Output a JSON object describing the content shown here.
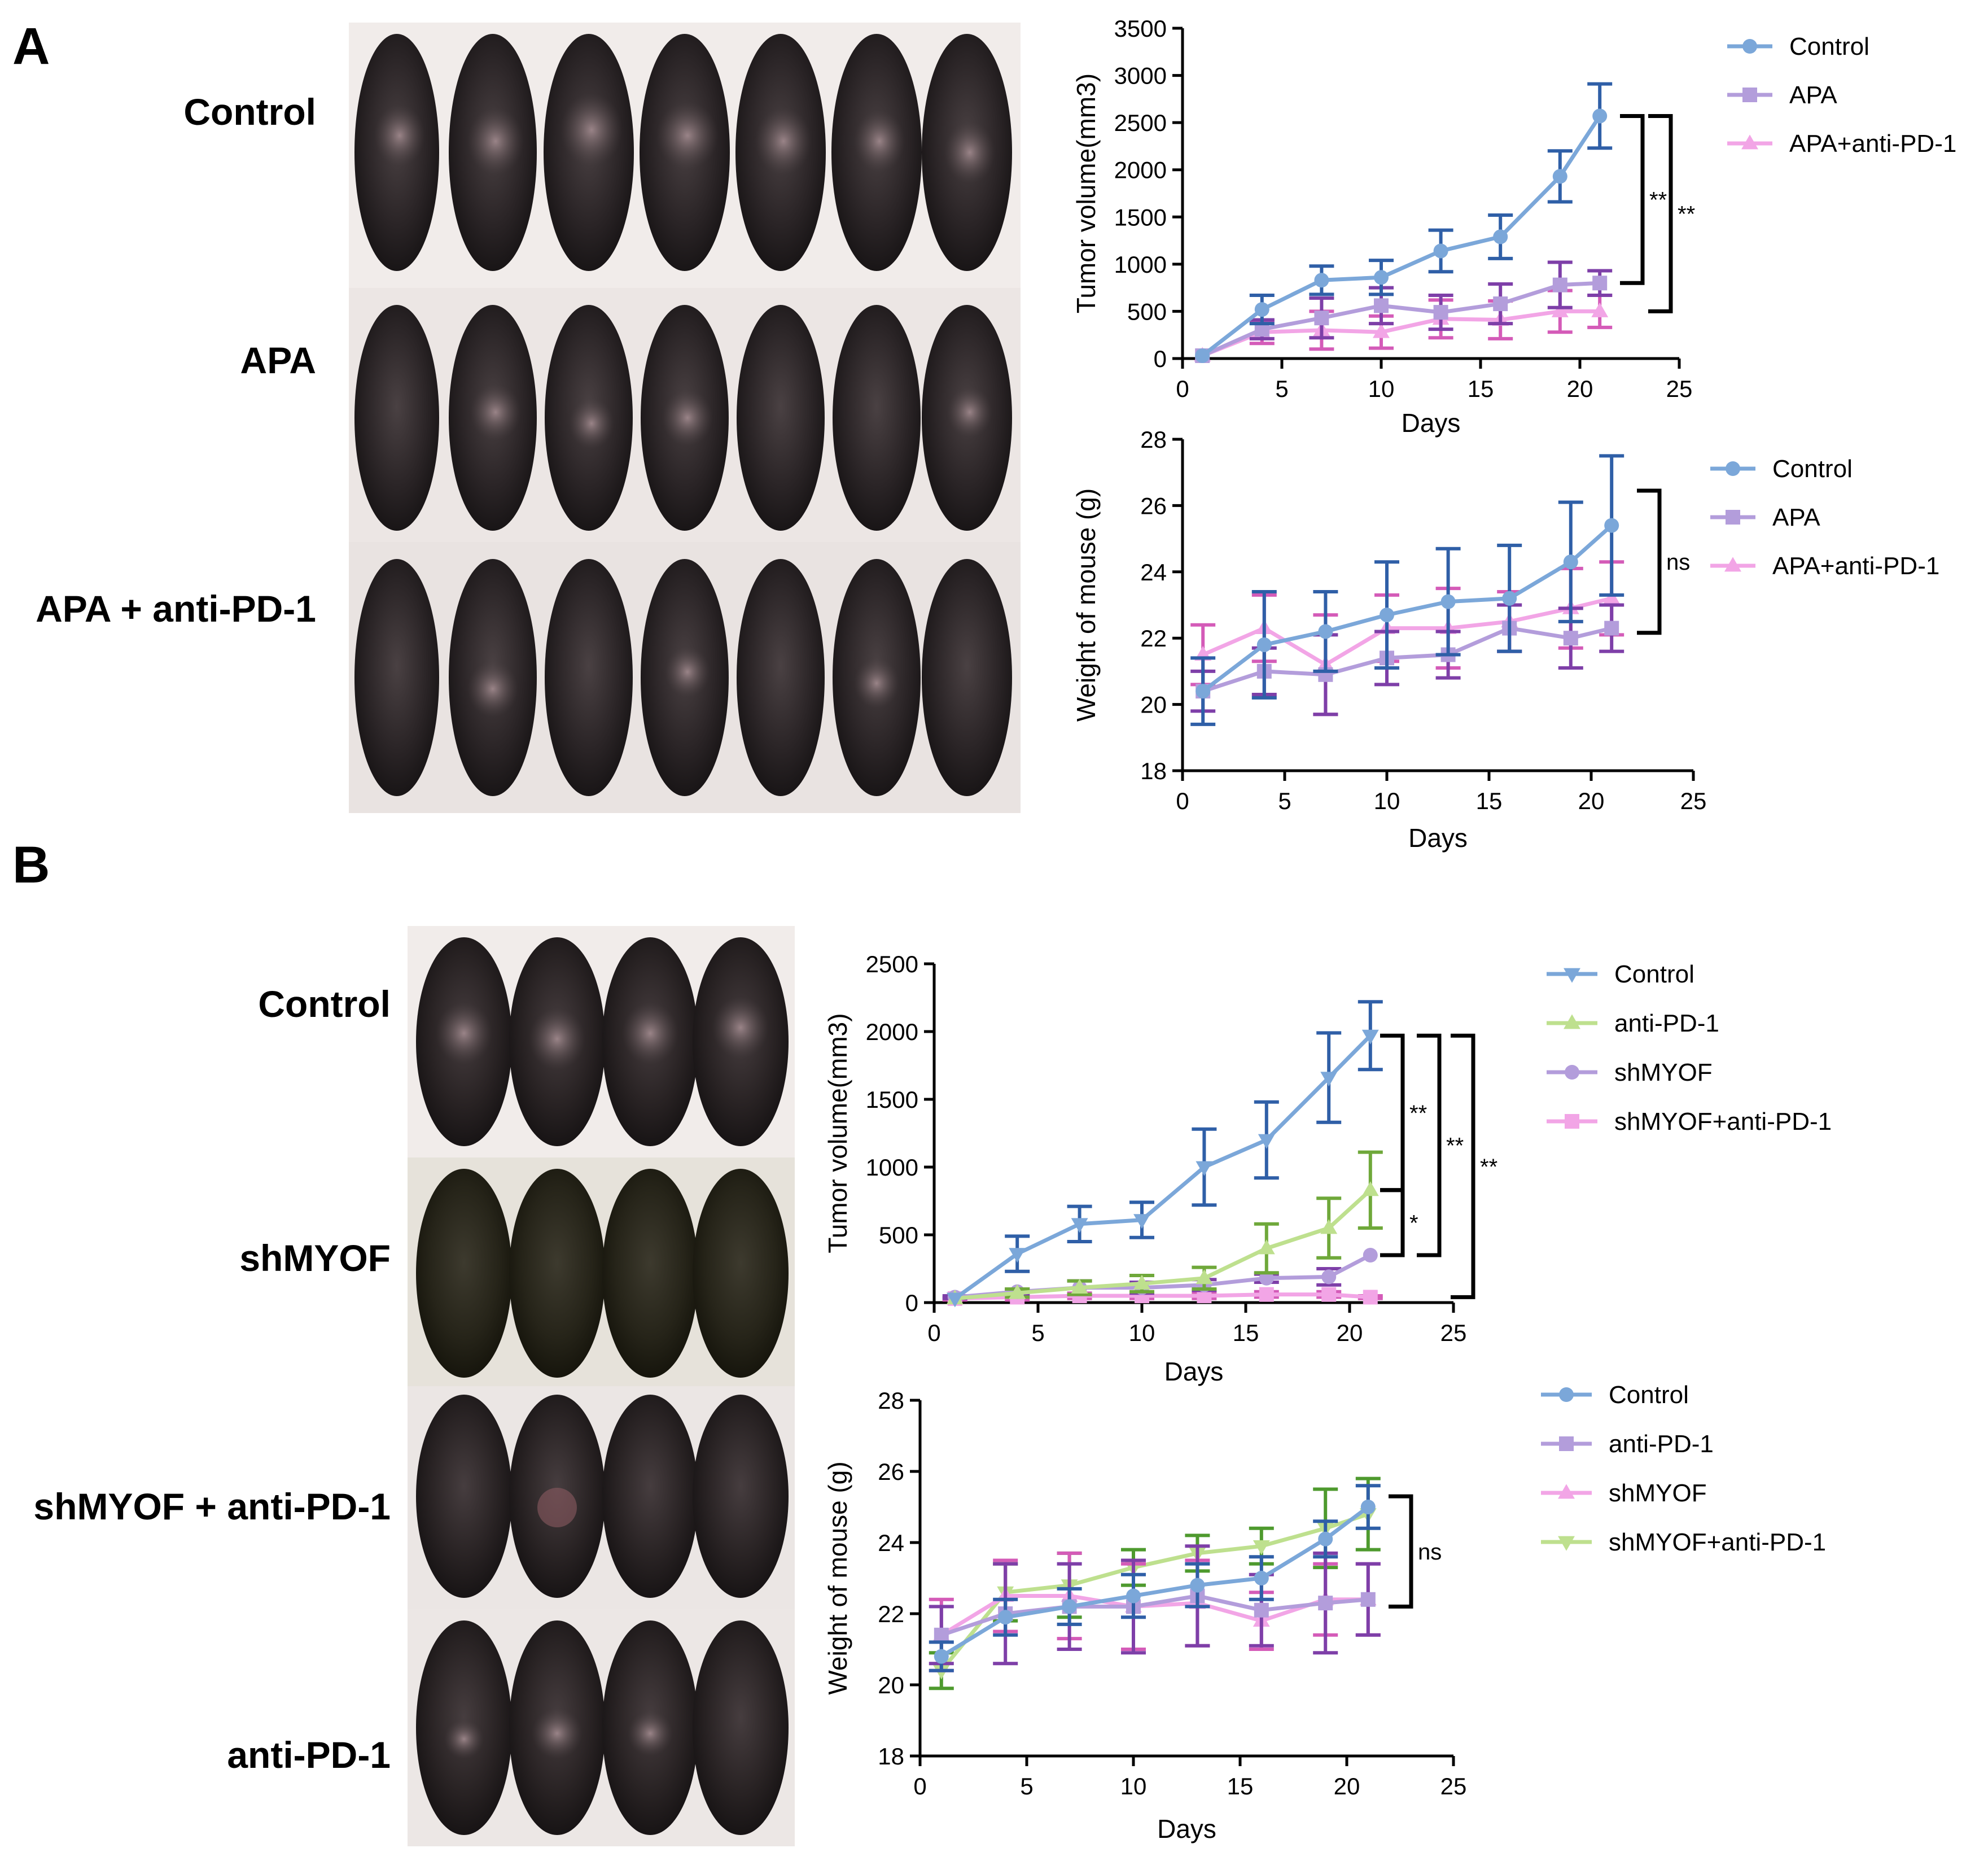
{
  "panels": {
    "A": {
      "letter": "A",
      "rows": [
        "Control",
        "APA",
        "APA + anti-PD-1"
      ]
    },
    "B": {
      "letter": "B",
      "rows": [
        "Control",
        "shMYOF",
        "shMYOF + anti-PD-1",
        "anti-PD-1"
      ]
    }
  },
  "colors": {
    "blue": "#7BA7D9",
    "blue_err": "#2F5FA7",
    "purple": "#B39DDB",
    "purple_err": "#7E3FA8",
    "pink": "#F2A5E6",
    "pink_err": "#D45BB8",
    "green": "#BEE08E",
    "green_err": "#6FA83A",
    "green_err2": "#4E9A2E"
  },
  "chart_data": [
    {
      "id": "A-tumor",
      "type": "line",
      "ylabel": "Tumor volume(mm3)",
      "xlabel": "Days",
      "xlim": [
        0,
        25
      ],
      "ylim": [
        0,
        3500
      ],
      "xticks": [
        "0",
        "5",
        "10",
        "15",
        "20",
        "25"
      ],
      "yticks": [
        "0",
        "500",
        "1000",
        "1500",
        "2000",
        "2500",
        "3000",
        "3500"
      ],
      "series": [
        {
          "name": "Control",
          "marker": "circle",
          "color": "#7BA7D9",
          "err_color": "#2F5FA7",
          "x": [
            1,
            4,
            7,
            10,
            13,
            16,
            19,
            21
          ],
          "y": [
            30,
            520,
            830,
            860,
            1140,
            1290,
            1930,
            2570
          ],
          "err": [
            0,
            150,
            150,
            180,
            220,
            230,
            270,
            340
          ]
        },
        {
          "name": "APA",
          "marker": "square",
          "color": "#B39DDB",
          "err_color": "#7E3FA8",
          "x": [
            1,
            4,
            7,
            10,
            13,
            16,
            19,
            21
          ],
          "y": [
            30,
            310,
            430,
            560,
            490,
            580,
            780,
            800
          ],
          "err": [
            0,
            100,
            210,
            190,
            180,
            210,
            240,
            130
          ]
        },
        {
          "name": "APA+anti-PD-1",
          "marker": "triangle",
          "color": "#F2A5E6",
          "err_color": "#D45BB8",
          "x": [
            1,
            4,
            7,
            10,
            13,
            16,
            19,
            21
          ],
          "y": [
            30,
            280,
            300,
            280,
            420,
            410,
            500,
            500
          ],
          "err": [
            0,
            120,
            200,
            170,
            200,
            200,
            220,
            170
          ]
        }
      ],
      "significance": [
        "**",
        "**"
      ]
    },
    {
      "id": "A-weight",
      "type": "line",
      "ylabel": "Weight of mouse (g)",
      "xlabel": "Days",
      "xlim": [
        0,
        25
      ],
      "ylim": [
        18,
        28
      ],
      "xticks": [
        "0",
        "5",
        "10",
        "15",
        "20",
        "25"
      ],
      "yticks": [
        "18",
        "20",
        "22",
        "24",
        "26",
        "28"
      ],
      "series": [
        {
          "name": "Control",
          "marker": "circle",
          "color": "#7BA7D9",
          "err_color": "#2F5FA7",
          "x": [
            1,
            4,
            7,
            10,
            13,
            16,
            19,
            21
          ],
          "y": [
            20.4,
            21.8,
            22.2,
            22.7,
            23.1,
            23.2,
            24.3,
            25.4
          ],
          "err": [
            1.0,
            1.6,
            1.2,
            1.6,
            1.6,
            1.6,
            1.8,
            2.1
          ]
        },
        {
          "name": "APA",
          "marker": "square",
          "color": "#B39DDB",
          "err_color": "#7E3FA8",
          "x": [
            1,
            4,
            7,
            10,
            13,
            16,
            19,
            21
          ],
          "y": [
            20.4,
            21.0,
            20.9,
            21.4,
            21.5,
            22.3,
            22.0,
            22.3
          ],
          "err": [
            0.6,
            0.7,
            1.2,
            0.8,
            0.7,
            0.7,
            0.9,
            0.7
          ]
        },
        {
          "name": "APA+anti-PD-1",
          "marker": "triangle",
          "color": "#F2A5E6",
          "err_color": "#D45BB8",
          "x": [
            1,
            4,
            7,
            10,
            13,
            16,
            19,
            21
          ],
          "y": [
            21.5,
            22.3,
            21.2,
            22.3,
            22.3,
            22.5,
            22.9,
            23.2
          ],
          "err": [
            0.9,
            1.0,
            1.5,
            1.0,
            1.2,
            0.9,
            1.2,
            1.1
          ]
        }
      ],
      "significance": [
        "ns"
      ]
    },
    {
      "id": "B-tumor",
      "type": "line",
      "ylabel": "Tumor volume(mm3)",
      "xlabel": "Days",
      "xlim": [
        0,
        25
      ],
      "ylim": [
        0,
        2500
      ],
      "xticks": [
        "0",
        "5",
        "10",
        "15",
        "20",
        "25"
      ],
      "yticks": [
        "0",
        "500",
        "1000",
        "1500",
        "2000",
        "2500"
      ],
      "series": [
        {
          "name": "Control",
          "marker": "triangle-down",
          "color": "#7BA7D9",
          "err_color": "#2F5FA7",
          "x": [
            1,
            4,
            7,
            10,
            13,
            16,
            19,
            21
          ],
          "y": [
            30,
            360,
            580,
            610,
            1000,
            1200,
            1660,
            1970
          ],
          "err": [
            0,
            130,
            130,
            130,
            280,
            280,
            330,
            250
          ]
        },
        {
          "name": "anti-PD-1",
          "marker": "triangle",
          "color": "#BEE08E",
          "err_color": "#6FA83A",
          "x": [
            1,
            4,
            7,
            10,
            13,
            16,
            19,
            21
          ],
          "y": [
            30,
            70,
            110,
            140,
            180,
            400,
            550,
            830
          ],
          "err": [
            0,
            30,
            50,
            60,
            80,
            180,
            220,
            280
          ]
        },
        {
          "name": "shMYOF",
          "marker": "circle",
          "color": "#B39DDB",
          "err_color": "#7E3FA8",
          "x": [
            1,
            4,
            7,
            10,
            13,
            16,
            19,
            21
          ],
          "y": [
            40,
            80,
            110,
            110,
            130,
            180,
            190,
            350
          ],
          "err": [
            10,
            20,
            50,
            40,
            40,
            30,
            60,
            0
          ]
        },
        {
          "name": "shMYOF+anti-PD-1",
          "marker": "square",
          "color": "#F2A5E6",
          "err_color": "#D45BB8",
          "x": [
            1,
            4,
            7,
            10,
            13,
            16,
            19,
            21
          ],
          "y": [
            30,
            40,
            50,
            50,
            50,
            60,
            60,
            40
          ],
          "err": [
            10,
            20,
            20,
            20,
            20,
            20,
            20,
            10
          ]
        }
      ],
      "significance": [
        "**",
        "*",
        "**",
        "**"
      ]
    },
    {
      "id": "B-weight",
      "type": "line",
      "ylabel": "Weight of mouse (g)",
      "xlabel": "Days",
      "xlim": [
        0,
        25
      ],
      "ylim": [
        18,
        28
      ],
      "xticks": [
        "0",
        "5",
        "10",
        "15",
        "20",
        "25"
      ],
      "yticks": [
        "18",
        "20",
        "22",
        "24",
        "26",
        "28"
      ],
      "series": [
        {
          "name": "Control",
          "marker": "circle",
          "color": "#7BA7D9",
          "err_color": "#2F5FA7",
          "x": [
            1,
            4,
            7,
            10,
            13,
            16,
            19,
            21
          ],
          "y": [
            20.8,
            21.9,
            22.2,
            22.5,
            22.8,
            23.0,
            24.1,
            25.0
          ],
          "err": [
            0.4,
            0.5,
            0.5,
            0.6,
            0.6,
            0.6,
            0.5,
            0.6
          ]
        },
        {
          "name": "anti-PD-1",
          "marker": "square",
          "color": "#B39DDB",
          "err_color": "#7E3FA8",
          "x": [
            1,
            4,
            7,
            10,
            13,
            16,
            19,
            21
          ],
          "y": [
            21.4,
            22.0,
            22.2,
            22.2,
            22.5,
            22.1,
            22.3,
            22.4
          ],
          "err": [
            0.8,
            1.4,
            1.2,
            1.3,
            1.4,
            1.0,
            1.4,
            1.0
          ]
        },
        {
          "name": "shMYOF",
          "marker": "triangle",
          "color": "#F2A5E6",
          "err_color": "#D45BB8",
          "x": [
            1,
            4,
            7,
            10,
            13,
            16,
            19,
            21
          ],
          "y": [
            21.4,
            22.5,
            22.5,
            22.2,
            22.3,
            21.8,
            22.4,
            22.4
          ],
          "err": [
            1.0,
            1.0,
            1.2,
            1.2,
            1.2,
            0.8,
            1.0,
            1.0
          ]
        },
        {
          "name": "shMYOF+anti-PD-1",
          "marker": "triangle-down",
          "color": "#BEE08E",
          "err_color": "#4E9A2E",
          "x": [
            1,
            4,
            7,
            10,
            13,
            16,
            19,
            21
          ],
          "y": [
            20.4,
            22.6,
            22.8,
            23.3,
            23.7,
            23.9,
            24.4,
            24.8
          ],
          "err": [
            0.5,
            0.8,
            0.9,
            0.5,
            0.5,
            0.5,
            1.1,
            1.0
          ]
        }
      ],
      "significance": [
        "ns"
      ]
    }
  ]
}
